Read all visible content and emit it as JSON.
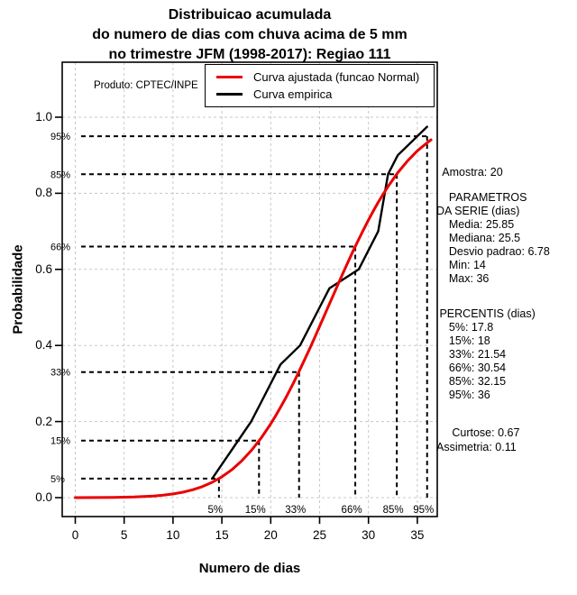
{
  "title": {
    "line1": "Distribuicao acumulada",
    "line2": "do numero de dias com chuva acima de 5 mm",
    "line3": "no trimestre JFM (1998-2017): Regiao 111"
  },
  "product_note": "Produto: CPTEC/INPE",
  "legend": {
    "items": [
      {
        "label": "Curva ajustada (funcao Normal)",
        "color": "#ea0000"
      },
      {
        "label": "Curva empirica",
        "color": "#000000"
      }
    ]
  },
  "axes": {
    "x": {
      "label": "Numero de dias",
      "ticks": [
        0,
        5,
        10,
        15,
        20,
        25,
        30,
        35
      ]
    },
    "y": {
      "label": "Probabilidade",
      "ticks": [
        {
          "value": 0.0,
          "text": "0.0"
        },
        {
          "value": 0.2,
          "text": "0.2"
        },
        {
          "value": 0.4,
          "text": "0.4"
        },
        {
          "value": 0.6,
          "text": "0.6"
        },
        {
          "value": 0.8,
          "text": "0.8"
        },
        {
          "value": 1.0,
          "text": "1.0"
        }
      ]
    }
  },
  "stats_panel": {
    "amostra": "  Amostra: 20",
    "series_block": [
      "    PARAMETROS",
      "DA SERIE (dias)",
      "    Media: 25.85",
      "    Mediana: 25.5",
      "    Desvio padrao: 6.78",
      "    Min: 14",
      "    Max: 36"
    ],
    "percentile_block": [
      " PERCENTIS (dias)",
      "    5%: 17.8",
      "    15%: 18",
      "    33%: 21.54",
      "    66%: 30.54",
      "    85%: 32.15",
      "    95%: 36"
    ],
    "moments_block": [
      "     Curtose: 0.67",
      "Assimetria: 0.11"
    ]
  },
  "chart_data": {
    "type": "line",
    "title": "Distribuicao acumulada do numero de dias com chuva acima de 5 mm no trimestre JFM (1998-2017): Regiao 111",
    "xlabel": "Numero de dias",
    "ylabel": "Probabilidade",
    "xlim": [
      -1.3,
      37.0
    ],
    "ylim": [
      -0.05,
      1.14
    ],
    "grid": true,
    "grid_color": "#c8c8c8",
    "legend_position": "top-right",
    "sample_size": 20,
    "series": [
      {
        "name": "Curva ajustada (funcao Normal)",
        "color": "#ea0000",
        "curve": "normal-cdf",
        "mean": 25.85,
        "sd": 6.78,
        "points": [
          [
            0,
            0.0001
          ],
          [
            2,
            0.0003
          ],
          [
            4,
            0.0007
          ],
          [
            6,
            0.0017
          ],
          [
            8,
            0.0042
          ],
          [
            9,
            0.0065
          ],
          [
            10,
            0.0097
          ],
          [
            11,
            0.0143
          ],
          [
            12,
            0.0205
          ],
          [
            13,
            0.029
          ],
          [
            14,
            0.0402
          ],
          [
            15,
            0.0548
          ],
          [
            16,
            0.0731
          ],
          [
            17,
            0.0959
          ],
          [
            18,
            0.1234
          ],
          [
            19,
            0.1562
          ],
          [
            20,
            0.1941
          ],
          [
            20.5,
            0.215
          ],
          [
            21,
            0.2373
          ],
          [
            21.5,
            0.2606
          ],
          [
            22,
            0.285
          ],
          [
            22.5,
            0.3106
          ],
          [
            23,
            0.3372
          ],
          [
            23.5,
            0.3644
          ],
          [
            24,
            0.3924
          ],
          [
            24.5,
            0.4211
          ],
          [
            25,
            0.4503
          ],
          [
            25.5,
            0.4794
          ],
          [
            26,
            0.5088
          ],
          [
            26.5,
            0.5382
          ],
          [
            27,
            0.5675
          ],
          [
            27.5,
            0.5961
          ],
          [
            28,
            0.6244
          ],
          [
            28.5,
            0.6521
          ],
          [
            29,
            0.679
          ],
          [
            29.5,
            0.7048
          ],
          [
            30,
            0.7297
          ],
          [
            30.5,
            0.7536
          ],
          [
            31,
            0.7764
          ],
          [
            31.5,
            0.7977
          ],
          [
            32,
            0.8178
          ],
          [
            33,
            0.8543
          ],
          [
            34,
            0.8853
          ],
          [
            35,
            0.9115
          ],
          [
            36,
            0.9327
          ],
          [
            36.4,
            0.9405
          ]
        ]
      },
      {
        "name": "Curva empirica",
        "color": "#000000",
        "curve": "empirical-cdf",
        "points": [
          [
            14,
            0.05
          ],
          [
            18,
            0.2
          ],
          [
            19,
            0.25
          ],
          [
            20,
            0.3
          ],
          [
            21,
            0.35
          ],
          [
            23,
            0.4
          ],
          [
            24,
            0.45
          ],
          [
            25,
            0.5
          ],
          [
            26,
            0.55
          ],
          [
            29,
            0.6
          ],
          [
            30,
            0.65
          ],
          [
            31,
            0.7
          ],
          [
            32,
            0.85
          ],
          [
            33,
            0.9
          ],
          [
            36,
            0.975
          ]
        ]
      }
    ],
    "percentile_guides": [
      {
        "label": "5%",
        "p": 0.05,
        "x": 14.7
      },
      {
        "label": "15%",
        "p": 0.15,
        "x": 18.8
      },
      {
        "label": "33%",
        "p": 0.33,
        "x": 22.9
      },
      {
        "label": "66%",
        "p": 0.66,
        "x": 28.65
      },
      {
        "label": "85%",
        "p": 0.85,
        "x": 32.9
      },
      {
        "label": "95%",
        "p": 0.95,
        "x": 36.0
      }
    ]
  }
}
